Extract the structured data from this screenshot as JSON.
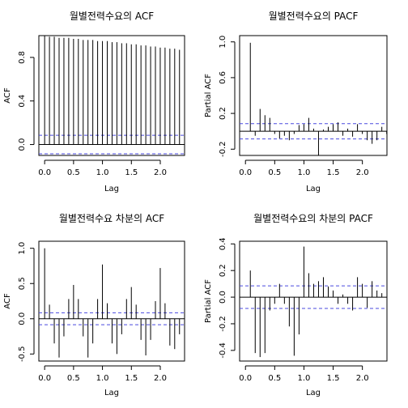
{
  "chart_data": [
    {
      "type": "bar",
      "title": "월별전력수요의 ACF",
      "xlabel": "Lag",
      "ylabel": "ACF",
      "xlim": [
        -0.1,
        2.42
      ],
      "ylim": [
        -0.1,
        1.0
      ],
      "xticks": [
        "0.0",
        "0.5",
        "1.0",
        "1.5",
        "2.0"
      ],
      "yticks": [
        "0.0",
        "0.4",
        "0.8"
      ],
      "ci": 0.085,
      "lag_start": 0,
      "lag_step": 0.0833,
      "values": [
        1.0,
        0.99,
        0.99,
        0.98,
        0.98,
        0.98,
        0.97,
        0.97,
        0.96,
        0.96,
        0.96,
        0.95,
        0.95,
        0.95,
        0.94,
        0.94,
        0.93,
        0.93,
        0.92,
        0.92,
        0.91,
        0.91,
        0.9,
        0.9,
        0.89,
        0.89,
        0.88,
        0.88,
        0.87
      ]
    },
    {
      "type": "bar",
      "title": "월별전력수요의 PACF",
      "xlabel": "Lag",
      "ylabel": "Partial ACF",
      "xlim": [
        -0.1,
        2.42
      ],
      "ylim": [
        -0.27,
        1.07
      ],
      "xticks": [
        "0.0",
        "0.5",
        "1.0",
        "1.5",
        "2.0"
      ],
      "yticks": [
        "-0.2",
        "0.2",
        "0.6",
        "1.0"
      ],
      "ci": 0.085,
      "lag_start": 0.0833,
      "lag_step": 0.0833,
      "values": [
        0.99,
        -0.05,
        0.25,
        0.18,
        0.15,
        -0.03,
        -0.08,
        -0.05,
        -0.1,
        -0.03,
        0.07,
        0.08,
        0.15,
        0.03,
        -0.27,
        0.02,
        0.05,
        0.08,
        0.1,
        -0.05,
        0.03,
        -0.06,
        0.08,
        -0.03,
        -0.1,
        -0.14,
        -0.1,
        0.05,
        -0.03
      ]
    },
    {
      "type": "bar",
      "title": "월별전력수요 차분의 ACF",
      "xlabel": "Lag",
      "ylabel": "ACF",
      "xlim": [
        -0.1,
        2.42
      ],
      "ylim": [
        -0.6,
        1.1
      ],
      "xticks": [
        "0.0",
        "0.5",
        "1.0",
        "1.5",
        "2.0"
      ],
      "yticks": [
        "-0.5",
        "0.0",
        "0.5",
        "1.0"
      ],
      "ci": 0.085,
      "lag_start": 0,
      "lag_step": 0.0833,
      "values": [
        1.0,
        0.2,
        -0.35,
        -0.55,
        -0.25,
        0.28,
        0.48,
        0.28,
        -0.25,
        -0.55,
        -0.35,
        0.28,
        0.77,
        0.22,
        -0.35,
        -0.5,
        -0.22,
        0.28,
        0.45,
        0.2,
        -0.3,
        -0.52,
        -0.3,
        0.25,
        0.72,
        0.22,
        -0.38,
        -0.43,
        -0.22
      ]
    },
    {
      "type": "bar",
      "title": "월별전력수요의 차분의 PACF",
      "xlabel": "Lag",
      "ylabel": "Partial ACF",
      "xlim": [
        -0.1,
        2.42
      ],
      "ylim": [
        -0.48,
        0.42
      ],
      "xticks": [
        "0.0",
        "0.5",
        "1.0",
        "1.5",
        "2.0"
      ],
      "yticks": [
        "-0.4",
        "-0.2",
        "0.0",
        "0.2",
        "0.4"
      ],
      "ci": 0.085,
      "lag_start": 0.0833,
      "lag_step": 0.0833,
      "values": [
        0.2,
        -0.42,
        -0.45,
        -0.42,
        -0.1,
        -0.05,
        0.1,
        -0.05,
        -0.22,
        -0.44,
        -0.28,
        0.38,
        0.18,
        0.1,
        0.12,
        0.15,
        0.08,
        0.05,
        -0.05,
        0.02,
        -0.05,
        -0.1,
        0.15,
        0.1,
        -0.08,
        0.12,
        0.05,
        0.03
      ]
    }
  ],
  "colors": {
    "bars": "#000000",
    "ci_lines": "#4a4adf",
    "axis": "#000000"
  }
}
